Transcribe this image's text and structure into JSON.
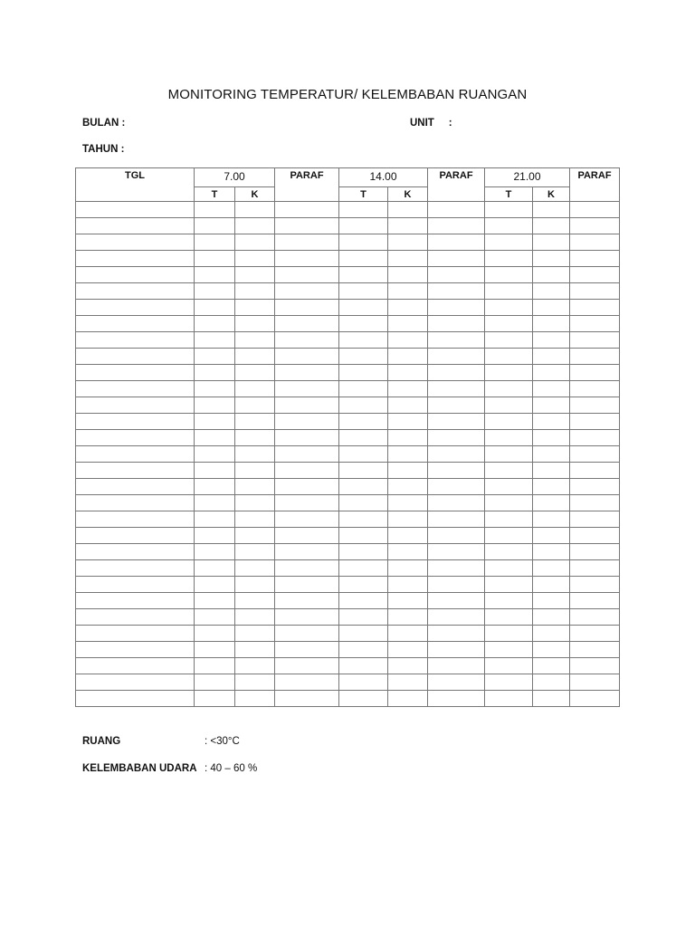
{
  "title": "MONITORING TEMPERATUR/ KELEMBABAN RUANGAN",
  "fields": {
    "bulan": "BULAN  :",
    "unit": "UNIT     :",
    "tahun": "TAHUN :"
  },
  "table": {
    "tgl": "TGL",
    "times": [
      "7.00",
      "14.00",
      "21.00"
    ],
    "paraf": "PARAF",
    "t": "T",
    "k": "K",
    "row_count": 31
  },
  "footer": {
    "ruang_label": "RUANG",
    "ruang_value": ": <30°C",
    "kelembaban_label": "KELEMBABAN UDARA",
    "kelembaban_value": ": 40 – 60 %"
  }
}
